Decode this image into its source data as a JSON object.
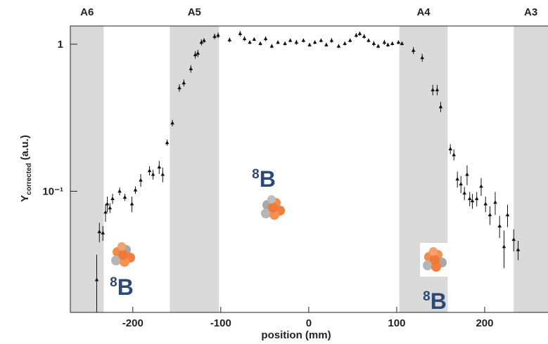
{
  "chart_data": {
    "type": "scatter",
    "x_label": "position (mm)",
    "y_label": {
      "main": "Y",
      "sub": "corrected",
      "unit": "(a.u.)"
    },
    "xlim": [
      -271,
      272
    ],
    "xticks": [
      -200,
      -100,
      0,
      100,
      200
    ],
    "ylim": [
      0.015,
      1.33
    ],
    "yticks": [
      {
        "value": 0.1,
        "label": "10⁻¹"
      },
      1
    ],
    "log_y": true,
    "regions": [
      {
        "label": "A6",
        "start": -271,
        "end": -233
      },
      {
        "label": "A5",
        "start": -158,
        "end": -102
      },
      {
        "label": "A4",
        "start": 103,
        "end": 158
      },
      {
        "label": "A3",
        "start": 233,
        "end": 272
      }
    ],
    "region_color": "#d9d9d9",
    "annotations": [
      {
        "sup": "8",
        "text": "B"
      },
      {
        "sup": "8",
        "text": "B"
      },
      {
        "sup": "8",
        "text": "B"
      }
    ],
    "series": [
      {
        "color": "#111111",
        "x": [
          -241,
          -238,
          -234,
          -231,
          -229,
          -226,
          -223,
          -215,
          -209,
          -201,
          -197,
          -191,
          -181,
          -177,
          -170,
          -166,
          -161,
          -155,
          -147,
          -142,
          -134,
          -129,
          -126,
          -122,
          -119,
          -107,
          -103,
          -90,
          -78,
          -73,
          -67,
          -62,
          -55,
          -49,
          -42,
          -35,
          -27,
          -21,
          -14,
          -6,
          1,
          7,
          14,
          20,
          26,
          34,
          41,
          47,
          54,
          58,
          63,
          68,
          74,
          79,
          86,
          90,
          95,
          102,
          106,
          119,
          129,
          141,
          146,
          150,
          161,
          165,
          169,
          173,
          177,
          180,
          183,
          186,
          191,
          196,
          201,
          206,
          212,
          217,
          222,
          226,
          233,
          238
        ],
        "values": [
          0.025,
          0.053,
          0.052,
          0.072,
          0.082,
          0.077,
          0.089,
          0.1,
          0.091,
          0.082,
          0.102,
          0.119,
          0.138,
          0.13,
          0.146,
          0.13,
          0.214,
          0.291,
          0.505,
          0.545,
          0.68,
          0.847,
          0.867,
          1.03,
          1.06,
          1.13,
          1.15,
          1.07,
          1.18,
          1.09,
          1.03,
          1.08,
          1.01,
          1.09,
          0.97,
          1.03,
          1.01,
          1.06,
          1.03,
          1.06,
          0.99,
          1.03,
          1.06,
          0.99,
          1.06,
          0.97,
          1.01,
          1.06,
          1.15,
          1.18,
          1.13,
          1.06,
          1.01,
          0.97,
          1.03,
          0.99,
          1.01,
          1.03,
          1.01,
          0.906,
          0.81,
          0.489,
          0.489,
          0.375,
          0.194,
          0.177,
          0.121,
          0.112,
          0.097,
          0.13,
          0.089,
          0.086,
          0.089,
          0.108,
          0.082,
          0.069,
          0.084,
          0.058,
          0.042,
          0.069,
          0.047,
          0.04
        ],
        "errors": [
          0.012,
          0.008,
          0.006,
          0.01,
          0.01,
          0.006,
          0.007,
          0.006,
          0.005,
          0.01,
          0.006,
          0.012,
          0.01,
          0.01,
          0.015,
          0.015,
          0.01,
          0.015,
          0.03,
          0.03,
          0.04,
          0.05,
          0.05,
          0.05,
          0.04,
          0.05,
          0.05,
          0.04,
          0.05,
          0.04,
          0.03,
          0.03,
          0.03,
          0.04,
          0.03,
          0.03,
          0.03,
          0.03,
          0.04,
          0.03,
          0.03,
          0.03,
          0.03,
          0.03,
          0.04,
          0.03,
          0.03,
          0.03,
          0.04,
          0.04,
          0.04,
          0.03,
          0.04,
          0.03,
          0.04,
          0.03,
          0.03,
          0.03,
          0.03,
          0.05,
          0.05,
          0.04,
          0.04,
          0.03,
          0.015,
          0.015,
          0.015,
          0.015,
          0.01,
          0.02,
          0.01,
          0.01,
          0.01,
          0.015,
          0.01,
          0.01,
          0.015,
          0.01,
          0.012,
          0.012,
          0.008,
          0.006
        ]
      }
    ]
  }
}
